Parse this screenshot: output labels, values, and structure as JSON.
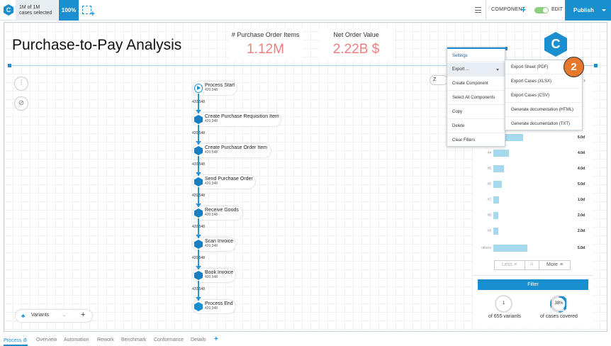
{
  "topbar": {
    "logo_letter": "C",
    "cases_line1": "1M of 1M",
    "cases_line2": "cases selected",
    "percent": "100%",
    "component_label": "COMPONENT",
    "edit_label": "EDIT",
    "publish_label": "Publish",
    "edit_toggle_on": true
  },
  "dashboard": {
    "title": "Purchase-to-Pay Analysis",
    "kpis": [
      {
        "label": "# Purchase Order Items",
        "value": "1.12M"
      },
      {
        "label": "Net Order Value",
        "value": "2.22B $"
      }
    ],
    "kpi_value_color": "#ee7f7f",
    "brand_badge_letter": "C",
    "accent": "#1a8fd0"
  },
  "process": {
    "nodes": [
      {
        "name": "Process Start",
        "count": "420,548",
        "icon": "play-circle-icon"
      },
      {
        "name": "Create Purchase Requisition Item",
        "count": "420,548",
        "icon": "activity-hex-icon"
      },
      {
        "name": "Create Purchase Order Item",
        "count": "420,548",
        "icon": "activity-hex-icon"
      },
      {
        "name": "Send Purchase Order",
        "count": "420,548",
        "icon": "activity-hex-icon"
      },
      {
        "name": "Receive Goods",
        "count": "420,548",
        "icon": "activity-hex-icon"
      },
      {
        "name": "Scan Invoice",
        "count": "420,548",
        "icon": "activity-hex-icon"
      },
      {
        "name": "Book Invoice",
        "count": "420,548",
        "icon": "activity-hex-icon"
      },
      {
        "name": "Process End",
        "count": "420,548",
        "icon": "stop-hex-icon"
      }
    ],
    "edge_labels": [
      "420,548",
      "420,548",
      "420,548",
      "420,548",
      "420,548",
      "420,548",
      "420,548"
    ],
    "variants_label": "Variants",
    "minus": "−",
    "plus": "+"
  },
  "variant_panel": {
    "rows": [
      {
        "label": "",
        "share": 0.42,
        "duration": "6.0d"
      },
      {
        "label": "#4",
        "share": 0.22,
        "duration": "4.0d"
      },
      {
        "label": "#5",
        "share": 0.15,
        "duration": "4.0d"
      },
      {
        "label": "#6",
        "share": 0.12,
        "duration": "5.0d"
      },
      {
        "label": "#7",
        "share": 0.08,
        "duration": "1.0d"
      },
      {
        "label": "#8",
        "share": 0.07,
        "duration": "2.0d"
      },
      {
        "label": "#9",
        "share": 0.07,
        "duration": "2.0d"
      },
      {
        "label": "others",
        "share": 0.48,
        "duration": "5.0d"
      }
    ],
    "less_label": "Less",
    "more_label": "More",
    "filter_label": "Filter",
    "variant_count": "1",
    "variant_count_caption": "of 655 variants",
    "coverage": "38%",
    "coverage_fraction": 0.38,
    "coverage_caption": "of cases covered",
    "zoom_label": "Z"
  },
  "context_menu": {
    "items": [
      "Settings",
      "Export ...",
      "Create Component",
      "Select All Components",
      "Copy",
      "Delete",
      "Clear Filters"
    ],
    "export_submenu": [
      "Export Sheet (PDF)",
      "Export Cases (XLSX)",
      "Export Cases (CSV)",
      "Generate documentation (HTML)",
      "Generate documentation (TXT)"
    ]
  },
  "step_badge": "2",
  "tabs": [
    "Process",
    "Overview",
    "Automation",
    "Rework",
    "Benchmark",
    "Conformance",
    "Details"
  ],
  "add_tab": "+"
}
